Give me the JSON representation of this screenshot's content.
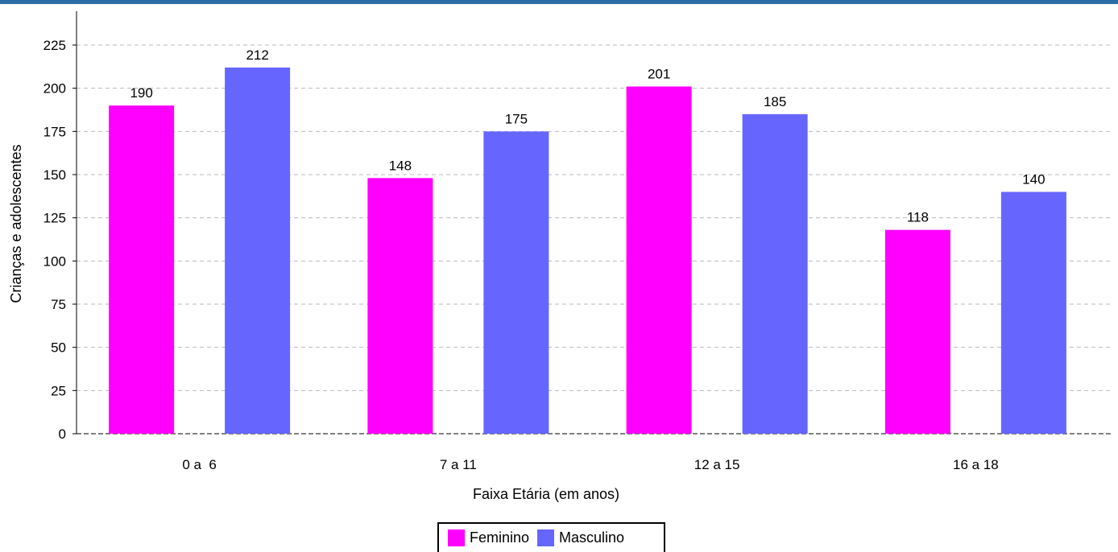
{
  "chart_data": {
    "type": "bar",
    "categories": [
      "0 a  6",
      "7 a 11",
      "12 a 15",
      "16 a 18"
    ],
    "series": [
      {
        "name": "Feminino",
        "values": [
          190,
          148,
          201,
          118
        ],
        "color": "#ff00ff"
      },
      {
        "name": "Masculino",
        "values": [
          212,
          175,
          185,
          140
        ],
        "color": "#6666ff"
      }
    ],
    "xlabel": "Faixa Etária (em anos)",
    "ylabel": "Crianças e adolescentes",
    "ylim": [
      0,
      225
    ],
    "yticks": [
      0,
      25,
      50,
      75,
      100,
      125,
      150,
      175,
      200,
      225
    ],
    "grid": true,
    "legend_position": "bottom"
  },
  "colors": {
    "header_bar": "#2b6ea6"
  }
}
